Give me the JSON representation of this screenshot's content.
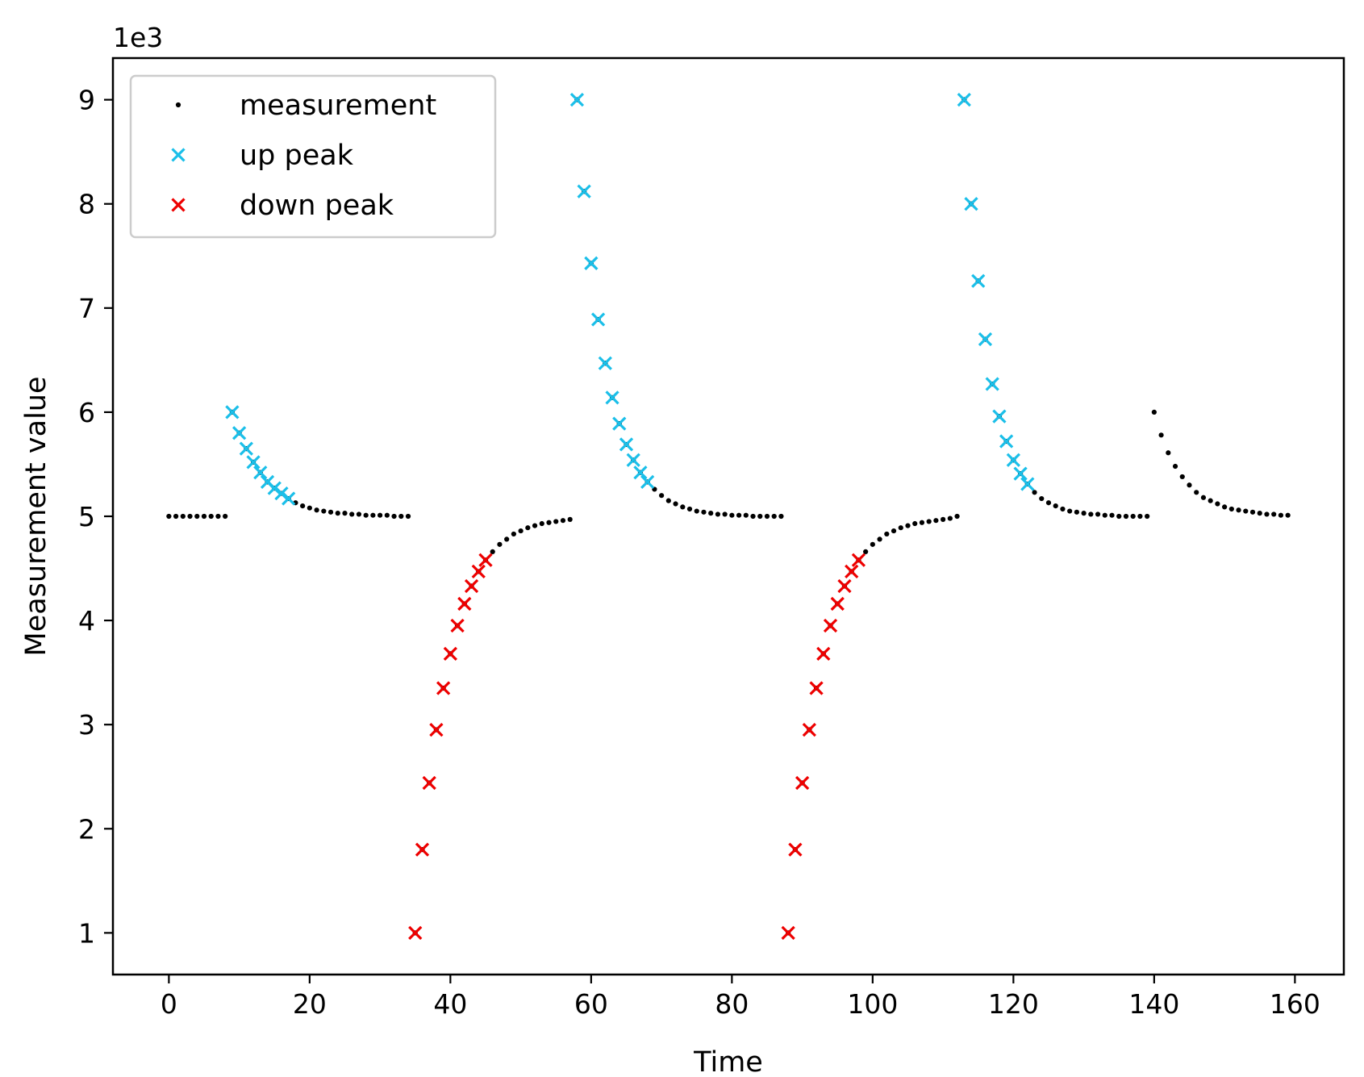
{
  "chart_data": {
    "type": "scatter",
    "title": "",
    "xlabel": "Time",
    "ylabel": "Measurement value",
    "offset_label": "1e3",
    "xlim": [
      -7.95,
      166.95
    ],
    "ylim": [
      0.6,
      9.4
    ],
    "xticks": [
      0,
      20,
      40,
      60,
      80,
      100,
      120,
      140,
      160
    ],
    "yticks": [
      1,
      2,
      3,
      4,
      5,
      6,
      7,
      8,
      9
    ],
    "grid": false,
    "legend_position": "upper left",
    "colors": {
      "measurement": "#000000",
      "up_peak": "#1bbfe9",
      "down_peak": "#ee0000",
      "axes": "#000000"
    },
    "legend": [
      {
        "label": "measurement",
        "marker": "dot",
        "color": "#000000"
      },
      {
        "label": "up peak",
        "marker": "x",
        "color": "#1bbfe9"
      },
      {
        "label": "down peak",
        "marker": "x",
        "color": "#ee0000"
      }
    ],
    "series": [
      {
        "name": "measurement",
        "x": [
          0,
          1,
          2,
          3,
          4,
          5,
          6,
          7,
          8,
          9,
          10,
          11,
          12,
          13,
          14,
          15,
          16,
          17,
          18,
          19,
          20,
          21,
          22,
          23,
          24,
          25,
          26,
          27,
          28,
          29,
          30,
          31,
          32,
          33,
          34,
          35,
          36,
          37,
          38,
          39,
          40,
          41,
          42,
          43,
          44,
          45,
          46,
          47,
          48,
          49,
          50,
          51,
          52,
          53,
          54,
          55,
          56,
          57,
          58,
          59,
          60,
          61,
          62,
          63,
          64,
          65,
          66,
          67,
          68,
          69,
          70,
          71,
          72,
          73,
          74,
          75,
          76,
          77,
          78,
          79,
          80,
          81,
          82,
          83,
          84,
          85,
          86,
          87,
          88,
          89,
          90,
          91,
          92,
          93,
          94,
          95,
          96,
          97,
          98,
          99,
          100,
          101,
          102,
          103,
          104,
          105,
          106,
          107,
          108,
          109,
          110,
          111,
          112,
          113,
          114,
          115,
          116,
          117,
          118,
          119,
          120,
          121,
          122,
          123,
          124,
          125,
          126,
          127,
          128,
          129,
          130,
          131,
          132,
          133,
          134,
          135,
          136,
          137,
          138,
          139,
          140,
          141,
          142,
          143,
          144,
          145,
          146,
          147,
          148,
          149,
          150,
          151,
          152,
          153,
          154,
          155,
          156,
          157,
          158,
          159
        ],
        "y": [
          5.0,
          5.0,
          5.0,
          5.0,
          5.0,
          5.0,
          5.0,
          5.0,
          5.0,
          6.0,
          5.8,
          5.65,
          5.52,
          5.42,
          5.33,
          5.27,
          5.22,
          5.17,
          5.13,
          5.1,
          5.08,
          5.06,
          5.05,
          5.04,
          5.03,
          5.03,
          5.02,
          5.02,
          5.01,
          5.01,
          5.01,
          5.01,
          5.0,
          5.0,
          5.0,
          1.0,
          1.8,
          2.44,
          2.95,
          3.35,
          3.68,
          3.95,
          4.16,
          4.33,
          4.47,
          4.58,
          4.66,
          4.73,
          4.78,
          4.83,
          4.86,
          4.89,
          4.91,
          4.93,
          4.94,
          4.95,
          4.96,
          4.97,
          9.0,
          8.12,
          7.43,
          6.89,
          6.47,
          6.14,
          5.89,
          5.69,
          5.54,
          5.42,
          5.33,
          5.26,
          5.2,
          5.15,
          5.12,
          5.09,
          5.07,
          5.05,
          5.04,
          5.03,
          5.02,
          5.02,
          5.01,
          5.01,
          5.01,
          5.0,
          5.0,
          5.0,
          5.0,
          5.0,
          1.0,
          1.8,
          2.44,
          2.95,
          3.35,
          3.68,
          3.95,
          4.16,
          4.33,
          4.47,
          4.58,
          4.66,
          4.73,
          4.78,
          4.83,
          4.86,
          4.89,
          4.91,
          4.93,
          4.94,
          4.95,
          4.96,
          4.97,
          4.98,
          5.0,
          9.0,
          8.0,
          7.26,
          6.7,
          6.27,
          5.96,
          5.72,
          5.54,
          5.41,
          5.31,
          5.23,
          5.17,
          5.13,
          5.1,
          5.07,
          5.05,
          5.04,
          5.03,
          5.02,
          5.02,
          5.01,
          5.01,
          5.0,
          5.0,
          5.0,
          5.0,
          5.0,
          6.0,
          5.78,
          5.61,
          5.48,
          5.38,
          5.3,
          5.23,
          5.18,
          5.15,
          5.12,
          5.09,
          5.07,
          5.06,
          5.05,
          5.04,
          5.03,
          5.02,
          5.02,
          5.01,
          5.01
        ]
      },
      {
        "name": "up peak",
        "x": [
          9,
          10,
          11,
          12,
          13,
          14,
          15,
          16,
          17,
          58,
          59,
          60,
          61,
          62,
          63,
          64,
          65,
          66,
          67,
          68,
          113,
          114,
          115,
          116,
          117,
          118,
          119,
          120,
          121,
          122
        ],
        "y": [
          6.0,
          5.8,
          5.65,
          5.52,
          5.42,
          5.33,
          5.27,
          5.22,
          5.17,
          9.0,
          8.12,
          7.43,
          6.89,
          6.47,
          6.14,
          5.89,
          5.69,
          5.54,
          5.42,
          5.33,
          9.0,
          8.0,
          7.26,
          6.7,
          6.27,
          5.96,
          5.72,
          5.54,
          5.41,
          5.31
        ]
      },
      {
        "name": "down peak",
        "x": [
          35,
          36,
          37,
          38,
          39,
          40,
          41,
          42,
          43,
          44,
          45,
          88,
          89,
          90,
          91,
          92,
          93,
          94,
          95,
          96,
          97,
          98
        ],
        "y": [
          1.0,
          1.8,
          2.44,
          2.95,
          3.35,
          3.68,
          3.95,
          4.16,
          4.33,
          4.47,
          4.58,
          1.0,
          1.8,
          2.44,
          2.95,
          3.35,
          3.68,
          3.95,
          4.16,
          4.33,
          4.47,
          4.58
        ]
      }
    ]
  }
}
